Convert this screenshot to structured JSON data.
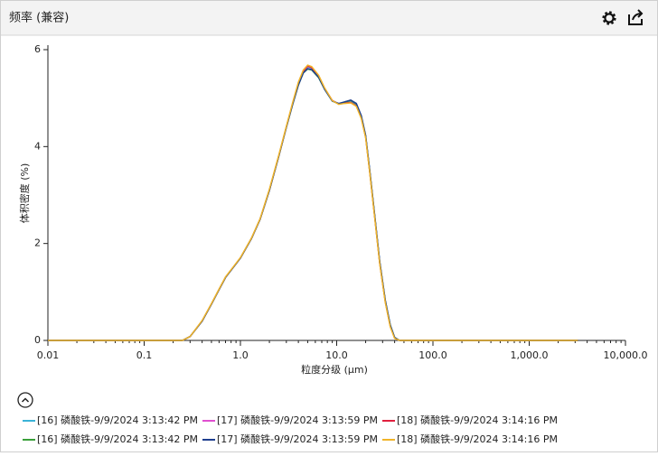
{
  "panel": {
    "title": "频率 (兼容)"
  },
  "chart_data": {
    "type": "line",
    "x_label": "粒度分级 (μm)",
    "y_label": "体积密度 (%)",
    "xscale": "log",
    "grid": false,
    "xlim": [
      0.01,
      10000
    ],
    "ylim": [
      0,
      6
    ],
    "xticks": [
      0.01,
      0.1,
      {
        "value": 1,
        "label": "1.0"
      },
      {
        "value": 10,
        "label": "10.0"
      },
      {
        "value": 100,
        "label": "100.0"
      },
      {
        "value": 1000,
        "label": "1,000.0"
      },
      {
        "value": 10000,
        "label": "10,000.0"
      }
    ],
    "yticks": [
      0,
      2,
      4,
      6
    ],
    "x": [
      0.01,
      0.1,
      0.25,
      0.3,
      0.4,
      0.5,
      0.6,
      0.7,
      0.8,
      1.0,
      1.3,
      1.6,
      2.0,
      2.5,
      3.0,
      3.5,
      4.0,
      4.5,
      5.0,
      5.5,
      6.5,
      7.5,
      9.0,
      10.5,
      12.0,
      14.0,
      16.0,
      18.0,
      20.0,
      22.0,
      25.0,
      28.0,
      32.0,
      36.0,
      40.0,
      45.0,
      3200
    ],
    "series": [
      {
        "name": "[16] 磷酸铁-9/9/2024 3:13:42 PM",
        "color": "#3bb3d8",
        "values": [
          0,
          0,
          0,
          0.08,
          0.4,
          0.75,
          1.05,
          1.3,
          1.45,
          1.7,
          2.1,
          2.5,
          3.1,
          3.8,
          4.4,
          4.9,
          5.3,
          5.55,
          5.65,
          5.62,
          5.45,
          5.2,
          4.95,
          4.88,
          4.9,
          4.92,
          4.85,
          4.6,
          4.2,
          3.5,
          2.5,
          1.6,
          0.8,
          0.3,
          0.05,
          0,
          0
        ]
      },
      {
        "name": "[17] 磷酸铁-9/9/2024 3:13:59 PM",
        "color": "#e04fd0",
        "values": [
          0,
          0,
          0,
          0.08,
          0.4,
          0.75,
          1.05,
          1.3,
          1.45,
          1.7,
          2.1,
          2.5,
          3.1,
          3.8,
          4.4,
          4.9,
          5.3,
          5.56,
          5.66,
          5.63,
          5.45,
          5.2,
          4.95,
          4.88,
          4.9,
          4.91,
          4.84,
          4.6,
          4.2,
          3.5,
          2.5,
          1.6,
          0.8,
          0.3,
          0.05,
          0,
          0
        ]
      },
      {
        "name": "[18] 磷酸铁-9/9/2024 3:14:16 PM",
        "color": "#e0203e",
        "values": [
          0,
          0,
          0,
          0.08,
          0.4,
          0.75,
          1.05,
          1.3,
          1.45,
          1.7,
          2.1,
          2.5,
          3.1,
          3.8,
          4.4,
          4.9,
          5.3,
          5.56,
          5.66,
          5.63,
          5.46,
          5.2,
          4.95,
          4.88,
          4.9,
          4.91,
          4.84,
          4.6,
          4.2,
          3.5,
          2.5,
          1.6,
          0.8,
          0.3,
          0.05,
          0,
          0
        ]
      },
      {
        "name": "[16] 磷酸铁-9/9/2024 3:13:42 PM",
        "color": "#3aa03a",
        "values": [
          0,
          0,
          0,
          0.08,
          0.4,
          0.75,
          1.05,
          1.3,
          1.45,
          1.7,
          2.1,
          2.5,
          3.1,
          3.8,
          4.4,
          4.88,
          5.27,
          5.52,
          5.6,
          5.58,
          5.42,
          5.18,
          4.94,
          4.88,
          4.92,
          4.95,
          4.88,
          4.63,
          4.22,
          3.52,
          2.52,
          1.62,
          0.82,
          0.32,
          0.06,
          0,
          0
        ]
      },
      {
        "name": "[17] 磷酸铁-9/9/2024 3:13:59 PM",
        "color": "#1f3f8f",
        "values": [
          0,
          0,
          0,
          0.08,
          0.4,
          0.75,
          1.05,
          1.3,
          1.45,
          1.7,
          2.1,
          2.5,
          3.1,
          3.8,
          4.4,
          4.88,
          5.27,
          5.52,
          5.61,
          5.59,
          5.43,
          5.18,
          4.94,
          4.89,
          4.92,
          4.96,
          4.89,
          4.64,
          4.23,
          3.53,
          2.53,
          1.63,
          0.83,
          0.32,
          0.06,
          0,
          0
        ]
      },
      {
        "name": "[18] 磷酸铁-9/9/2024 3:14:16 PM",
        "color": "#f0b429",
        "values": [
          0,
          0,
          0,
          0.08,
          0.41,
          0.76,
          1.06,
          1.31,
          1.46,
          1.71,
          2.11,
          2.51,
          3.12,
          3.82,
          4.42,
          4.92,
          5.33,
          5.58,
          5.68,
          5.65,
          5.47,
          5.21,
          4.95,
          4.87,
          4.89,
          4.9,
          4.83,
          4.58,
          4.18,
          3.48,
          2.48,
          1.58,
          0.78,
          0.28,
          0.04,
          0,
          0
        ]
      }
    ]
  }
}
